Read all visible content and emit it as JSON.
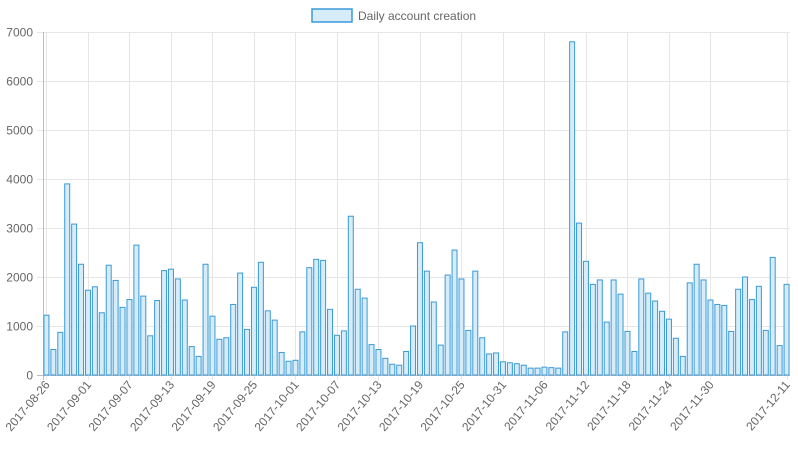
{
  "chart_data": {
    "type": "bar",
    "legend": {
      "position": "top",
      "label": "Daily account creation"
    },
    "colors": {
      "bar_fill": "#d6ecf8",
      "bar_stroke": "#3a9ad9",
      "grid": "#e6e6e6",
      "text": "#666666"
    },
    "grid": true,
    "ylim": [
      0,
      7000
    ],
    "yticks": [
      0,
      1000,
      2000,
      3000,
      4000,
      5000,
      6000,
      7000
    ],
    "xtick_labels": [
      "2017-08-26",
      "2017-09-01",
      "2017-09-07",
      "2017-09-13",
      "2017-09-19",
      "2017-09-25",
      "2017-10-01",
      "2017-10-07",
      "2017-10-13",
      "2017-10-19",
      "2017-10-25",
      "2017-10-31",
      "2017-11-06",
      "2017-11-12",
      "2017-11-18",
      "2017-11-24",
      "2017-11-30",
      "2017-12-11"
    ],
    "categories": [
      "2017-08-26",
      "2017-08-27",
      "2017-08-28",
      "2017-08-29",
      "2017-08-30",
      "2017-08-31",
      "2017-09-01",
      "2017-09-02",
      "2017-09-03",
      "2017-09-04",
      "2017-09-05",
      "2017-09-06",
      "2017-09-07",
      "2017-09-08",
      "2017-09-09",
      "2017-09-10",
      "2017-09-11",
      "2017-09-12",
      "2017-09-13",
      "2017-09-14",
      "2017-09-15",
      "2017-09-16",
      "2017-09-17",
      "2017-09-18",
      "2017-09-19",
      "2017-09-20",
      "2017-09-21",
      "2017-09-22",
      "2017-09-23",
      "2017-09-24",
      "2017-09-25",
      "2017-09-26",
      "2017-09-27",
      "2017-09-28",
      "2017-09-29",
      "2017-09-30",
      "2017-10-01",
      "2017-10-02",
      "2017-10-03",
      "2017-10-04",
      "2017-10-05",
      "2017-10-06",
      "2017-10-07",
      "2017-10-08",
      "2017-10-09",
      "2017-10-10",
      "2017-10-11",
      "2017-10-12",
      "2017-10-13",
      "2017-10-14",
      "2017-10-15",
      "2017-10-16",
      "2017-10-17",
      "2017-10-18",
      "2017-10-19",
      "2017-10-20",
      "2017-10-21",
      "2017-10-22",
      "2017-10-23",
      "2017-10-24",
      "2017-10-25",
      "2017-10-26",
      "2017-10-27",
      "2017-10-28",
      "2017-10-29",
      "2017-10-30",
      "2017-10-31",
      "2017-11-01",
      "2017-11-02",
      "2017-11-03",
      "2017-11-04",
      "2017-11-05",
      "2017-11-06",
      "2017-11-07",
      "2017-11-08",
      "2017-11-09",
      "2017-11-10",
      "2017-11-11",
      "2017-11-12",
      "2017-11-13",
      "2017-11-14",
      "2017-11-15",
      "2017-11-16",
      "2017-11-17",
      "2017-11-18",
      "2017-11-19",
      "2017-11-20",
      "2017-11-21",
      "2017-11-22",
      "2017-11-23",
      "2017-11-24",
      "2017-11-25",
      "2017-11-26",
      "2017-11-27",
      "2017-11-28",
      "2017-11-29",
      "2017-11-30",
      "2017-12-01",
      "2017-12-02",
      "2017-12-03",
      "2017-12-04",
      "2017-12-05",
      "2017-12-06",
      "2017-12-07",
      "2017-12-08",
      "2017-12-09",
      "2017-12-10",
      "2017-12-11"
    ],
    "series": [
      {
        "name": "Daily account creation",
        "values": [
          1220,
          520,
          870,
          3900,
          3080,
          2260,
          1730,
          1800,
          1270,
          2240,
          1930,
          1380,
          1540,
          2650,
          1610,
          800,
          1520,
          2130,
          2160,
          1960,
          1530,
          580,
          380,
          2260,
          1200,
          730,
          760,
          1440,
          2080,
          930,
          1790,
          2300,
          1310,
          1120,
          460,
          280,
          300,
          880,
          2190,
          2360,
          2340,
          1340,
          810,
          900,
          3240,
          1750,
          1570,
          620,
          520,
          340,
          220,
          200,
          480,
          1000,
          2700,
          2120,
          1490,
          610,
          2040,
          2550,
          1960,
          910,
          2120,
          760,
          430,
          450,
          270,
          250,
          230,
          200,
          140,
          140,
          160,
          150,
          140,
          880,
          6800,
          3100,
          2320,
          1850,
          1940,
          1080,
          1940,
          1650,
          890,
          480,
          1960,
          1670,
          1510,
          1300,
          1140,
          750,
          380,
          1880,
          2260,
          1940,
          1530,
          1440,
          1420,
          890,
          1750,
          2000,
          1540,
          1810,
          910,
          2400,
          600,
          1850
        ]
      }
    ]
  }
}
